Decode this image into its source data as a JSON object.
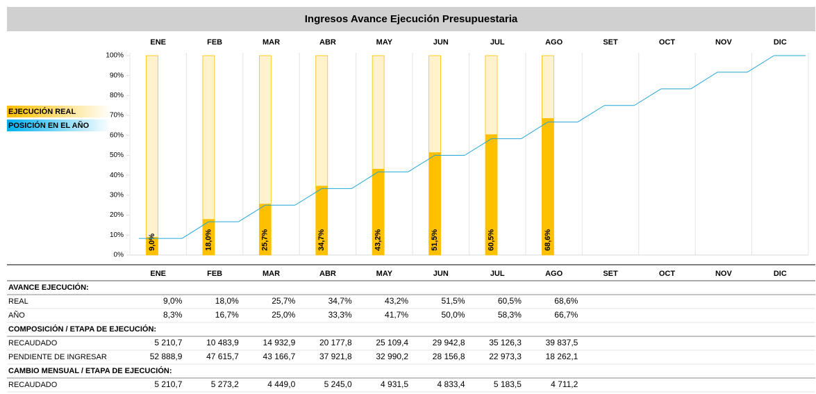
{
  "chart_data": {
    "type": "bar",
    "title": "Ingresos Avance Ejecución Presupuestaria",
    "categories": [
      "ENE",
      "FEB",
      "MAR",
      "ABR",
      "MAY",
      "JUN",
      "JUL",
      "AGO",
      "SET",
      "OCT",
      "NOV",
      "DIC"
    ],
    "series": [
      {
        "name": "EJECUCIÓN REAL",
        "type": "bar",
        "color": "#ffc000",
        "track_color": "#fff2cc",
        "values": [
          9.0,
          18.0,
          25.7,
          34.7,
          43.2,
          51.5,
          60.5,
          68.6,
          null,
          null,
          null,
          null
        ],
        "value_labels": [
          "9,0%",
          "18,0%",
          "25,7%",
          "34,7%",
          "43,2%",
          "51,5%",
          "60,5%",
          "68,6%",
          null,
          null,
          null,
          null
        ]
      },
      {
        "name": "POSICIÓN EN EL AÑO",
        "type": "line",
        "color": "#1fa6d8",
        "values": [
          8.3,
          16.7,
          25.0,
          33.3,
          41.7,
          50.0,
          58.3,
          66.7,
          75.0,
          83.3,
          91.7,
          100.0
        ]
      }
    ],
    "ylim": [
      0,
      100
    ],
    "yticks": [
      {
        "value": 0,
        "label": "0%"
      },
      {
        "value": 10,
        "label": "10%"
      },
      {
        "value": 20,
        "label": "20%"
      },
      {
        "value": 30,
        "label": "30%"
      },
      {
        "value": 40,
        "label": "40%"
      },
      {
        "value": 50,
        "label": "50%"
      },
      {
        "value": 60,
        "label": "60%"
      },
      {
        "value": 70,
        "label": "70%"
      },
      {
        "value": 80,
        "label": "80%"
      },
      {
        "value": 90,
        "label": "90%"
      },
      {
        "value": 100,
        "label": "100%"
      }
    ],
    "grid": true,
    "legend": "left"
  },
  "table": {
    "sections": [
      {
        "title": "AVANCE EJECUCIÓN:",
        "rows": [
          {
            "label": "REAL",
            "cells": [
              "9,0%",
              "18,0%",
              "25,7%",
              "34,7%",
              "43,2%",
              "51,5%",
              "60,5%",
              "68,6%"
            ]
          },
          {
            "label": "AÑO",
            "cells": [
              "8,3%",
              "16,7%",
              "25,0%",
              "33,3%",
              "41,7%",
              "50,0%",
              "58,3%",
              "66,7%"
            ]
          }
        ]
      },
      {
        "title": "COMPOSICIÓN / ETAPA DE EJECUCIÓN:",
        "rows": [
          {
            "label": "RECAUDADO",
            "cells": [
              "5 210,7",
              "10 483,9",
              "14 932,9",
              "20 177,8",
              "25 109,4",
              "29 942,8",
              "35 126,3",
              "39 837,5"
            ]
          },
          {
            "label": "PENDIENTE DE INGRESAR",
            "cells": [
              "52 888,9",
              "47 615,7",
              "43 166,7",
              "37 921,8",
              "32 990,2",
              "28 156,8",
              "22 973,3",
              "18 262,1"
            ]
          }
        ]
      },
      {
        "title": "CAMBIO MENSUAL / ETAPA DE EJECUCIÓN:",
        "rows": [
          {
            "label": "RECAUDADO",
            "cells": [
              "5 210,7",
              "5 273,2",
              "4 449,0",
              "5 245,0",
              "4 931,5",
              "4 833,4",
              "5 183,5",
              "4 711,2"
            ]
          }
        ]
      }
    ]
  }
}
